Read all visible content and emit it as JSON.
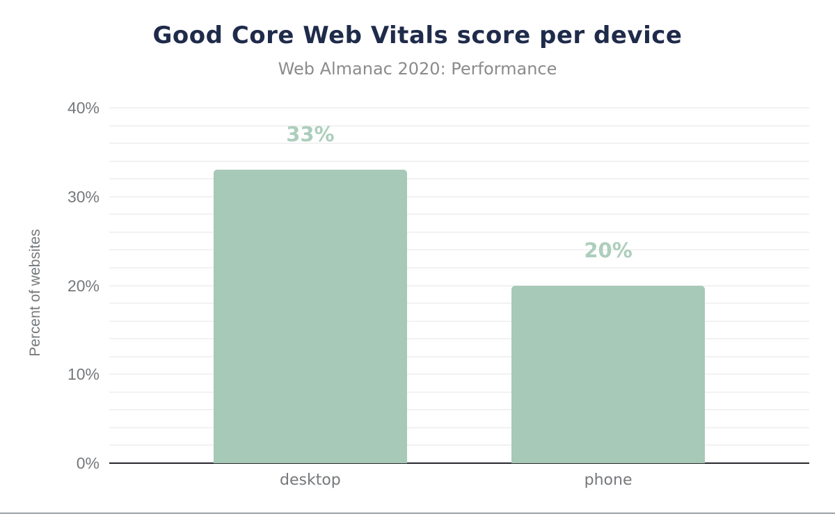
{
  "chart_data": {
    "type": "bar",
    "title": "Good Core Web Vitals score per device",
    "subtitle": "Web Almanac 2020: Performance",
    "categories": [
      "desktop",
      "phone"
    ],
    "values": [
      33,
      20
    ],
    "value_labels": [
      "33%",
      "20%"
    ],
    "xlabel": "",
    "ylabel": "Percent of websites",
    "ylim": [
      0,
      40
    ],
    "y_tick_step": 10,
    "y_tick_labels": [
      "0%",
      "10%",
      "20%",
      "30%",
      "40%"
    ],
    "y_gridline_step": 2,
    "grid": true,
    "legend": "none",
    "colors": {
      "background": "#ffffff",
      "title": "#1f2b4a",
      "subtitle": "#8b8b8b",
      "axis_text": "#75787b",
      "gridline": "#f2f2f2",
      "baseline": "#26282c",
      "bar_fill": "#a7c9b7",
      "data_label": "#adcebc",
      "bottom_border": "#9aa0a5"
    }
  }
}
